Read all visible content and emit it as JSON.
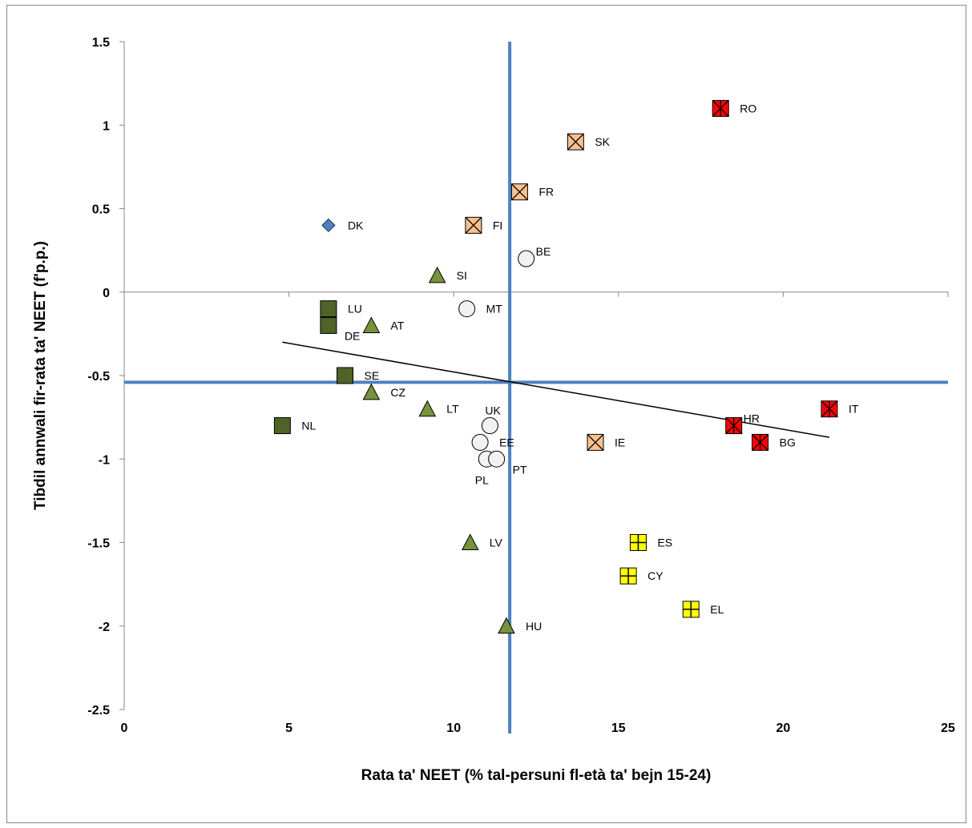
{
  "chart_data": {
    "type": "scatter",
    "xlabel": "Rata ta' NEET (% tal-persuni fl-età ta' bejn 15-24)",
    "ylabel": "Tibdil annwali fir-rata ta' NEET (f'p.p.)",
    "xlim": [
      0,
      25
    ],
    "ylim": [
      -2.5,
      1.5
    ],
    "x_ticks": [
      "0",
      "5",
      "10",
      "15",
      "20",
      "25"
    ],
    "y_ticks": [
      "-2.5",
      "-2",
      "-1.5",
      "-1",
      "-0.5",
      "0",
      "0.5",
      "1",
      "1.5"
    ],
    "grid": false,
    "reference_lines": {
      "x_mean": 11.7,
      "y_mean": -0.54,
      "color": "#4f81bd"
    },
    "trendline": {
      "x": [
        4.8,
        21.4
      ],
      "y": [
        -0.3,
        -0.87
      ],
      "color": "#000000"
    },
    "marker_colors": {
      "diamond": "#4f81bd",
      "square": "#4f6228",
      "triangle": "#77933c",
      "circle": "#f2f2f2",
      "x-square": "#fac090",
      "star-square": "#ff0000",
      "plus-square": "#ffff00"
    },
    "points": [
      {
        "label": "DK",
        "x": 6.2,
        "y": 0.4,
        "marker": "diamond",
        "lp": "right"
      },
      {
        "label": "LU",
        "x": 6.2,
        "y": -0.1,
        "marker": "square",
        "lp": "right"
      },
      {
        "label": "DE",
        "x": 6.2,
        "y": -0.2,
        "marker": "square",
        "lp": "right-below"
      },
      {
        "label": "SE",
        "x": 6.7,
        "y": -0.5,
        "marker": "square",
        "lp": "right"
      },
      {
        "label": "NL",
        "x": 4.8,
        "y": -0.8,
        "marker": "square",
        "lp": "right"
      },
      {
        "label": "AT",
        "x": 7.5,
        "y": -0.2,
        "marker": "triangle",
        "lp": "right"
      },
      {
        "label": "CZ",
        "x": 7.5,
        "y": -0.6,
        "marker": "triangle",
        "lp": "right"
      },
      {
        "label": "SI",
        "x": 9.5,
        "y": 0.1,
        "marker": "triangle",
        "lp": "right"
      },
      {
        "label": "LT",
        "x": 9.2,
        "y": -0.7,
        "marker": "triangle",
        "lp": "right"
      },
      {
        "label": "LV",
        "x": 10.5,
        "y": -1.5,
        "marker": "triangle",
        "lp": "right"
      },
      {
        "label": "HU",
        "x": 11.6,
        "y": -2.0,
        "marker": "triangle",
        "lp": "right"
      },
      {
        "label": "MT",
        "x": 10.4,
        "y": -0.1,
        "marker": "circle",
        "lp": "right"
      },
      {
        "label": "BE",
        "x": 12.2,
        "y": 0.2,
        "marker": "circle",
        "lp": "right-above"
      },
      {
        "label": "UK",
        "x": 11.1,
        "y": -0.8,
        "marker": "circle",
        "lp": "above"
      },
      {
        "label": "EE",
        "x": 10.8,
        "y": -0.9,
        "marker": "circle",
        "lp": "right"
      },
      {
        "label": "PL",
        "x": 11.0,
        "y": -1.0,
        "marker": "circle",
        "lp": "below"
      },
      {
        "label": "PT",
        "x": 11.3,
        "y": -1.0,
        "marker": "circle",
        "lp": "right-below"
      },
      {
        "label": "FI",
        "x": 10.6,
        "y": 0.4,
        "marker": "x-square",
        "lp": "right"
      },
      {
        "label": "FR",
        "x": 12.0,
        "y": 0.6,
        "marker": "x-square",
        "lp": "right"
      },
      {
        "label": "SK",
        "x": 13.7,
        "y": 0.9,
        "marker": "x-square",
        "lp": "right"
      },
      {
        "label": "IE",
        "x": 14.3,
        "y": -0.9,
        "marker": "x-square",
        "lp": "right"
      },
      {
        "label": "RO",
        "x": 18.1,
        "y": 1.1,
        "marker": "star-square",
        "lp": "right"
      },
      {
        "label": "HR",
        "x": 18.5,
        "y": -0.8,
        "marker": "star-square",
        "lp": "right-above"
      },
      {
        "label": "BG",
        "x": 19.3,
        "y": -0.9,
        "marker": "star-square",
        "lp": "right"
      },
      {
        "label": "IT",
        "x": 21.4,
        "y": -0.7,
        "marker": "star-square",
        "lp": "right"
      },
      {
        "label": "ES",
        "x": 15.6,
        "y": -1.5,
        "marker": "plus-square",
        "lp": "right"
      },
      {
        "label": "CY",
        "x": 15.3,
        "y": -1.7,
        "marker": "plus-square",
        "lp": "right"
      },
      {
        "label": "EL",
        "x": 17.2,
        "y": -1.9,
        "marker": "plus-square",
        "lp": "right"
      }
    ]
  }
}
